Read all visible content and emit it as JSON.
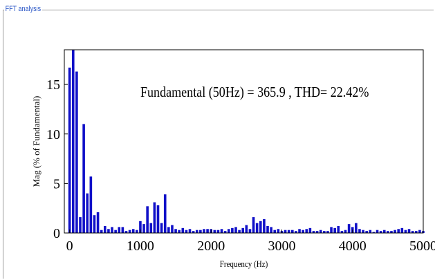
{
  "panel": {
    "title": "FFT analysis"
  },
  "chart_data": {
    "type": "bar",
    "title": "",
    "annotation": "Fundamental (50Hz) = 365.9 , THD= 22.42%",
    "xlabel": "Frequency (Hz)",
    "ylabel": "Mag (% of Fundamental)",
    "xlim": [
      -75,
      5000
    ],
    "ylim": [
      0,
      18.5
    ],
    "xticks": [
      0,
      1000,
      2000,
      3000,
      4000,
      5000
    ],
    "yticks": [
      0,
      5,
      10,
      15
    ],
    "bar_color": "#1010c8",
    "x": [
      0,
      50,
      100,
      150,
      200,
      250,
      300,
      350,
      400,
      450,
      500,
      550,
      600,
      650,
      700,
      750,
      800,
      850,
      900,
      950,
      1000,
      1050,
      1100,
      1150,
      1200,
      1250,
      1300,
      1350,
      1400,
      1450,
      1500,
      1550,
      1600,
      1650,
      1700,
      1750,
      1800,
      1850,
      1900,
      1950,
      2000,
      2050,
      2100,
      2150,
      2200,
      2250,
      2300,
      2350,
      2400,
      2450,
      2500,
      2550,
      2600,
      2650,
      2700,
      2750,
      2800,
      2850,
      2900,
      2950,
      3000,
      3050,
      3100,
      3150,
      3200,
      3250,
      3300,
      3350,
      3400,
      3450,
      3500,
      3550,
      3600,
      3650,
      3700,
      3750,
      3800,
      3850,
      3900,
      3950,
      4000,
      4050,
      4100,
      4150,
      4200,
      4250,
      4300,
      4350,
      4400,
      4450,
      4500,
      4550,
      4600,
      4650,
      4700,
      4750,
      4800,
      4850,
      4900,
      4950,
      5000
    ],
    "values": [
      16.7,
      18.5,
      16.3,
      1.6,
      11.0,
      4.0,
      5.7,
      1.8,
      2.1,
      0.3,
      0.7,
      0.4,
      0.6,
      0.3,
      0.6,
      0.6,
      0.2,
      0.3,
      0.4,
      0.3,
      1.2,
      0.9,
      2.7,
      1.0,
      3.1,
      2.8,
      1.0,
      3.9,
      0.6,
      0.8,
      0.4,
      0.3,
      0.5,
      0.3,
      0.4,
      0.2,
      0.3,
      0.3,
      0.4,
      0.4,
      0.4,
      0.3,
      0.3,
      0.4,
      0.2,
      0.4,
      0.5,
      0.6,
      0.3,
      0.5,
      0.8,
      0.4,
      1.6,
      1.0,
      1.2,
      1.4,
      0.7,
      0.6,
      0.3,
      0.4,
      0.2,
      0.3,
      0.3,
      0.3,
      0.2,
      0.4,
      0.3,
      0.4,
      0.5,
      0.2,
      0.2,
      0.3,
      0.2,
      0.2,
      0.6,
      0.5,
      0.7,
      0.2,
      0.3,
      0.9,
      0.6,
      1.0,
      0.4,
      0.3,
      0.2,
      0.3,
      0.1,
      0.3,
      0.2,
      0.3,
      0.2,
      0.2,
      0.3,
      0.4,
      0.5,
      0.3,
      0.4,
      0.2,
      0.2,
      0.3,
      0.2
    ],
    "grid": false
  }
}
